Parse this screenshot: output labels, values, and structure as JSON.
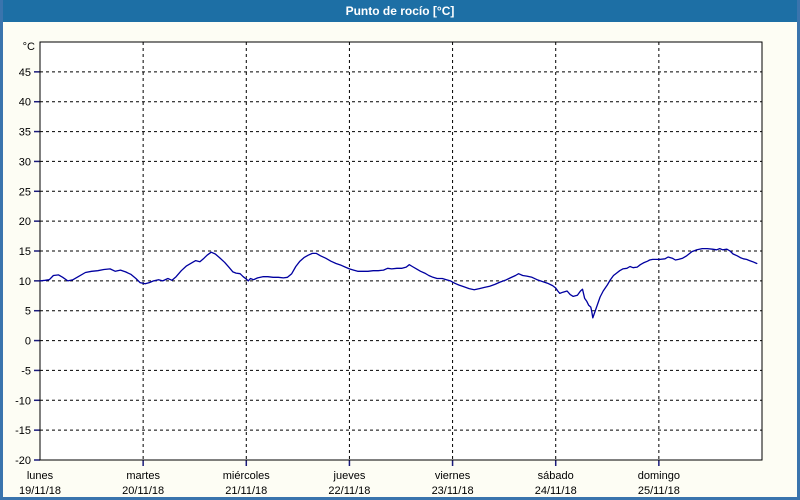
{
  "title": "Punto de rocío [°C]",
  "colors": {
    "titlebar_bg": "#1d6fa5",
    "titlebar_text": "#ffffff",
    "window_border": "#3a74ad",
    "page_bg": "#fdfdf4",
    "plot_bg": "#ffffff",
    "frame": "#000000",
    "grid": "#000000",
    "y_tick": "#1a1a7a",
    "x_tick": "#1a1a7a",
    "line": "#0000a0",
    "label_text": "#000000"
  },
  "y_axis": {
    "unit_label": "°C",
    "min": -20,
    "max": 45,
    "step": 5,
    "ticks": [
      45,
      40,
      35,
      30,
      25,
      20,
      15,
      10,
      5,
      0,
      -5,
      -10,
      -15,
      -20
    ]
  },
  "x_axis": {
    "days": [
      {
        "name": "lunes",
        "date": "19/11/18"
      },
      {
        "name": "martes",
        "date": "20/11/18"
      },
      {
        "name": "miércoles",
        "date": "21/11/18"
      },
      {
        "name": "jueves",
        "date": "22/11/18"
      },
      {
        "name": "viernes",
        "date": "23/11/18"
      },
      {
        "name": "sábado",
        "date": "24/11/18"
      },
      {
        "name": "domingo",
        "date": "25/11/18"
      }
    ]
  },
  "chart_data": {
    "type": "line",
    "title": "Punto de rocío [°C]",
    "xlabel": "",
    "ylabel": "°C",
    "x_unit": "days_from_monday_start",
    "x_range": [
      0,
      7
    ],
    "y_range": [
      -20,
      50
    ],
    "grid": "dashed",
    "legend": "none",
    "series": [
      {
        "name": "Punto de rocío",
        "color": "#0000a0",
        "points": [
          [
            0.0,
            10.0
          ],
          [
            0.05,
            10.1
          ],
          [
            0.09,
            10.2
          ],
          [
            0.13,
            10.9
          ],
          [
            0.18,
            11.0
          ],
          [
            0.22,
            10.6
          ],
          [
            0.27,
            10.0
          ],
          [
            0.32,
            10.2
          ],
          [
            0.37,
            10.7
          ],
          [
            0.44,
            11.4
          ],
          [
            0.5,
            11.6
          ],
          [
            0.56,
            11.7
          ],
          [
            0.62,
            11.9
          ],
          [
            0.68,
            12.0
          ],
          [
            0.73,
            11.6
          ],
          [
            0.78,
            11.8
          ],
          [
            0.83,
            11.5
          ],
          [
            0.88,
            11.1
          ],
          [
            0.93,
            10.4
          ],
          [
            0.97,
            9.7
          ],
          [
            1.02,
            9.5
          ],
          [
            1.06,
            9.7
          ],
          [
            1.1,
            10.0
          ],
          [
            1.15,
            10.2
          ],
          [
            1.19,
            10.0
          ],
          [
            1.24,
            10.4
          ],
          [
            1.28,
            10.1
          ],
          [
            1.32,
            10.7
          ],
          [
            1.37,
            11.7
          ],
          [
            1.42,
            12.5
          ],
          [
            1.47,
            13.0
          ],
          [
            1.51,
            13.4
          ],
          [
            1.55,
            13.2
          ],
          [
            1.59,
            13.8
          ],
          [
            1.62,
            14.3
          ],
          [
            1.66,
            14.8
          ],
          [
            1.7,
            14.5
          ],
          [
            1.74,
            13.9
          ],
          [
            1.79,
            13.1
          ],
          [
            1.83,
            12.3
          ],
          [
            1.87,
            11.5
          ],
          [
            1.9,
            11.3
          ],
          [
            1.94,
            11.2
          ],
          [
            1.97,
            10.7
          ],
          [
            2.0,
            10.3
          ],
          [
            2.02,
            10.0
          ],
          [
            2.04,
            10.4
          ],
          [
            2.07,
            10.2
          ],
          [
            2.11,
            10.5
          ],
          [
            2.16,
            10.7
          ],
          [
            2.21,
            10.7
          ],
          [
            2.26,
            10.6
          ],
          [
            2.31,
            10.6
          ],
          [
            2.36,
            10.5
          ],
          [
            2.4,
            10.6
          ],
          [
            2.44,
            11.2
          ],
          [
            2.48,
            12.4
          ],
          [
            2.52,
            13.3
          ],
          [
            2.56,
            13.9
          ],
          [
            2.6,
            14.3
          ],
          [
            2.64,
            14.6
          ],
          [
            2.68,
            14.6
          ],
          [
            2.72,
            14.2
          ],
          [
            2.77,
            13.8
          ],
          [
            2.82,
            13.3
          ],
          [
            2.87,
            12.9
          ],
          [
            2.92,
            12.6
          ],
          [
            2.96,
            12.3
          ],
          [
            3.0,
            12.0
          ],
          [
            3.04,
            11.8
          ],
          [
            3.08,
            11.6
          ],
          [
            3.13,
            11.6
          ],
          [
            3.18,
            11.6
          ],
          [
            3.23,
            11.7
          ],
          [
            3.28,
            11.7
          ],
          [
            3.33,
            11.8
          ],
          [
            3.37,
            12.1
          ],
          [
            3.41,
            12.0
          ],
          [
            3.46,
            12.1
          ],
          [
            3.51,
            12.1
          ],
          [
            3.55,
            12.3
          ],
          [
            3.58,
            12.7
          ],
          [
            3.61,
            12.4
          ],
          [
            3.65,
            12.0
          ],
          [
            3.69,
            11.6
          ],
          [
            3.73,
            11.3
          ],
          [
            3.77,
            10.9
          ],
          [
            3.81,
            10.6
          ],
          [
            3.85,
            10.4
          ],
          [
            3.9,
            10.4
          ],
          [
            3.94,
            10.2
          ],
          [
            3.98,
            10.0
          ],
          [
            4.02,
            9.6
          ],
          [
            4.06,
            9.3
          ],
          [
            4.11,
            9.0
          ],
          [
            4.16,
            8.7
          ],
          [
            4.21,
            8.5
          ],
          [
            4.26,
            8.7
          ],
          [
            4.31,
            8.9
          ],
          [
            4.36,
            9.1
          ],
          [
            4.41,
            9.4
          ],
          [
            4.46,
            9.8
          ],
          [
            4.51,
            10.1
          ],
          [
            4.56,
            10.5
          ],
          [
            4.61,
            10.9
          ],
          [
            4.64,
            11.2
          ],
          [
            4.68,
            10.9
          ],
          [
            4.72,
            10.8
          ],
          [
            4.77,
            10.6
          ],
          [
            4.82,
            10.2
          ],
          [
            4.87,
            9.9
          ],
          [
            4.92,
            9.6
          ],
          [
            4.97,
            9.2
          ],
          [
            5.0,
            8.8
          ],
          [
            5.02,
            8.3
          ],
          [
            5.04,
            7.9
          ],
          [
            5.07,
            8.1
          ],
          [
            5.11,
            8.3
          ],
          [
            5.14,
            7.7
          ],
          [
            5.17,
            7.4
          ],
          [
            5.21,
            7.6
          ],
          [
            5.24,
            8.3
          ],
          [
            5.26,
            8.6
          ],
          [
            5.28,
            7.1
          ],
          [
            5.3,
            6.6
          ],
          [
            5.32,
            5.9
          ],
          [
            5.34,
            5.6
          ],
          [
            5.35,
            4.8
          ],
          [
            5.36,
            3.8
          ],
          [
            5.4,
            5.8
          ],
          [
            5.43,
            7.3
          ],
          [
            5.46,
            8.3
          ],
          [
            5.5,
            9.3
          ],
          [
            5.53,
            10.2
          ],
          [
            5.56,
            10.9
          ],
          [
            5.59,
            11.3
          ],
          [
            5.62,
            11.7
          ],
          [
            5.65,
            12.0
          ],
          [
            5.69,
            12.1
          ],
          [
            5.72,
            12.4
          ],
          [
            5.75,
            12.2
          ],
          [
            5.79,
            12.3
          ],
          [
            5.82,
            12.7
          ],
          [
            5.85,
            13.0
          ],
          [
            5.89,
            13.3
          ],
          [
            5.91,
            13.5
          ],
          [
            5.94,
            13.6
          ],
          [
            5.98,
            13.6
          ],
          [
            6.01,
            13.6
          ],
          [
            6.06,
            13.7
          ],
          [
            6.09,
            14.0
          ],
          [
            6.13,
            13.8
          ],
          [
            6.16,
            13.5
          ],
          [
            6.19,
            13.6
          ],
          [
            6.23,
            13.8
          ],
          [
            6.27,
            14.2
          ],
          [
            6.32,
            14.9
          ],
          [
            6.37,
            15.2
          ],
          [
            6.42,
            15.4
          ],
          [
            6.47,
            15.4
          ],
          [
            6.52,
            15.3
          ],
          [
            6.56,
            15.2
          ],
          [
            6.59,
            15.4
          ],
          [
            6.62,
            15.2
          ],
          [
            6.66,
            15.3
          ],
          [
            6.69,
            15.0
          ],
          [
            6.72,
            14.5
          ],
          [
            6.76,
            14.2
          ],
          [
            6.79,
            13.9
          ],
          [
            6.82,
            13.7
          ],
          [
            6.85,
            13.6
          ],
          [
            6.88,
            13.4
          ],
          [
            6.91,
            13.2
          ],
          [
            6.95,
            12.9
          ]
        ]
      }
    ]
  }
}
